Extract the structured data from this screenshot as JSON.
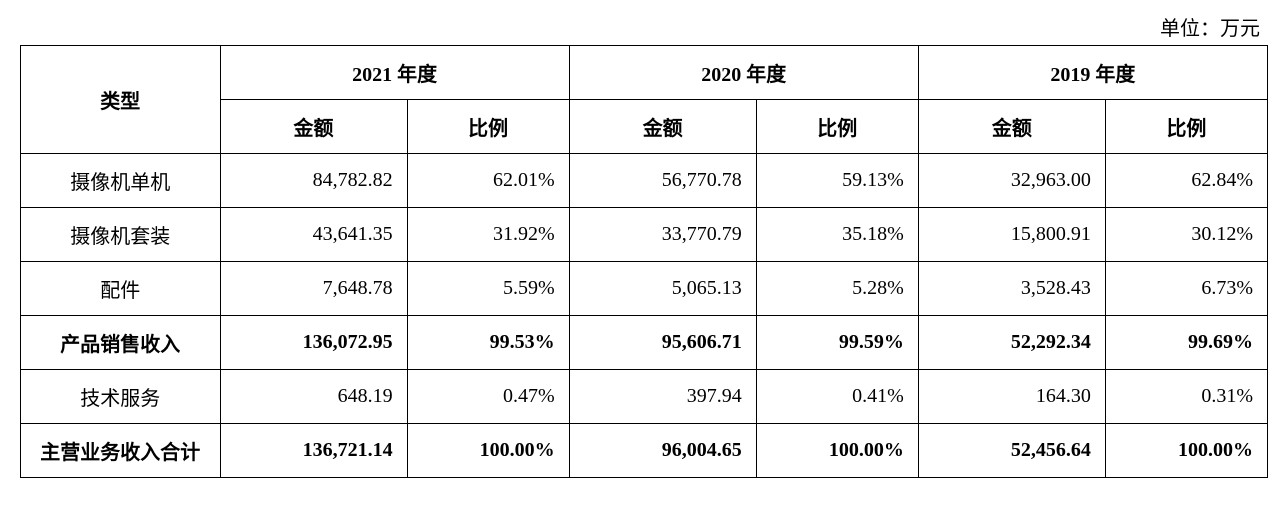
{
  "unit_label": "单位：万元",
  "header": {
    "type": "类型",
    "years": [
      "2021 年度",
      "2020 年度",
      "2019 年度"
    ],
    "sub": {
      "amount": "金额",
      "ratio": "比例"
    }
  },
  "rows": [
    {
      "label": "摄像机单机",
      "bold": false,
      "cells": [
        "84,782.82",
        "62.01%",
        "56,770.78",
        "59.13%",
        "32,963.00",
        "62.84%"
      ]
    },
    {
      "label": "摄像机套装",
      "bold": false,
      "cells": [
        "43,641.35",
        "31.92%",
        "33,770.79",
        "35.18%",
        "15,800.91",
        "30.12%"
      ]
    },
    {
      "label": "配件",
      "bold": false,
      "cells": [
        "7,648.78",
        "5.59%",
        "5,065.13",
        "5.28%",
        "3,528.43",
        "6.73%"
      ]
    },
    {
      "label": "产品销售收入",
      "bold": true,
      "cells": [
        "136,072.95",
        "99.53%",
        "95,606.71",
        "99.59%",
        "52,292.34",
        "99.69%"
      ]
    },
    {
      "label": "技术服务",
      "bold": false,
      "cells": [
        "648.19",
        "0.47%",
        "397.94",
        "0.41%",
        "164.30",
        "0.31%"
      ]
    },
    {
      "label": "主营业务收入合计",
      "bold": true,
      "cells": [
        "136,721.14",
        "100.00%",
        "96,004.65",
        "100.00%",
        "52,456.64",
        "100.00%"
      ]
    }
  ],
  "styling": {
    "font_family": "SimSun",
    "base_fontsize": 20,
    "border_color": "#000000",
    "border_width": 1.5,
    "background_color": "#ffffff",
    "text_color": "#000000",
    "cell_padding": "12px 14px",
    "column_widths": {
      "type": "16%",
      "amount": "15%",
      "ratio": "13%"
    }
  }
}
